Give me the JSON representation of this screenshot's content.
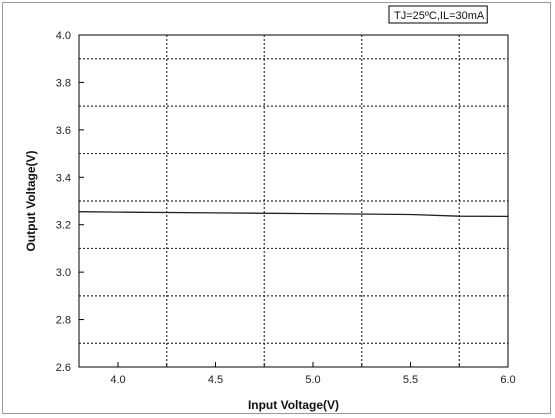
{
  "chart_data": {
    "type": "line",
    "title": "",
    "xlabel": "Input Voltage(V)",
    "ylabel": "Output Voltage(V)",
    "annotation": "TJ=25ºC,IL=30mA",
    "xlim": [
      3.8,
      6.0
    ],
    "ylim": [
      2.6,
      4.0
    ],
    "x_ticks": [
      "4.0",
      "4.5",
      "5.0",
      "5.5",
      "6.0"
    ],
    "y_ticks": [
      "2.6",
      "2.8",
      "3.0",
      "3.2",
      "3.4",
      "3.6",
      "3.8",
      "4.0"
    ],
    "x_grid": [
      4.25,
      4.75,
      5.25,
      5.75
    ],
    "y_grid": [
      2.7,
      2.9,
      3.1,
      3.3,
      3.5,
      3.7,
      3.9
    ],
    "grid": true,
    "series": [
      {
        "x": [
          3.8,
          4.0,
          4.5,
          5.0,
          5.5,
          5.75,
          6.0
        ],
        "y": [
          3.255,
          3.253,
          3.25,
          3.247,
          3.243,
          3.236,
          3.235
        ],
        "color": "#222222"
      }
    ]
  }
}
